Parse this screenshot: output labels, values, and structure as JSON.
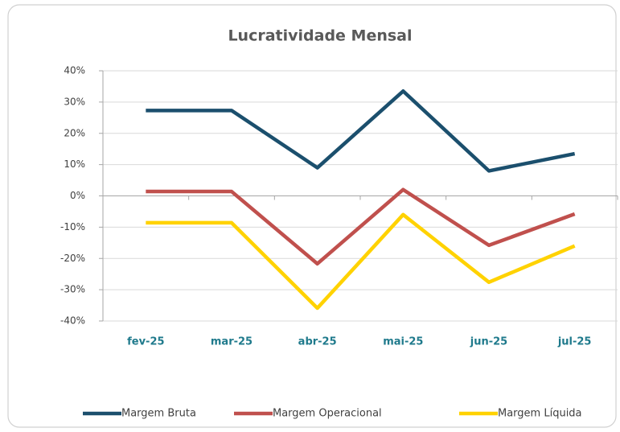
{
  "chart_data": {
    "type": "line",
    "title": "Lucratividade Mensal",
    "categories": [
      "fev-25",
      "mar-25",
      "abr-25",
      "mai-25",
      "jun-25",
      "jul-25"
    ],
    "series": [
      {
        "name": "Margem Bruta",
        "color": "#1b4f6d",
        "values": [
          27.3,
          27.3,
          9,
          33.5,
          8,
          13.5
        ]
      },
      {
        "name": "Margem Operacional",
        "color": "#c0504d",
        "values": [
          1.4,
          1.4,
          -21.7,
          2,
          -15.8,
          -5.8
        ]
      },
      {
        "name": "Margem Líquida",
        "color": "#ffd200",
        "values": [
          -8.6,
          -8.6,
          -35.9,
          -6,
          -27.6,
          -16
        ]
      }
    ],
    "ylim": [
      -40,
      40
    ],
    "yticks": [
      {
        "value": -40,
        "label": "-40%"
      },
      {
        "value": -30,
        "label": "-30%"
      },
      {
        "value": -20,
        "label": "-20%"
      },
      {
        "value": -10,
        "label": "-10%"
      },
      {
        "value": 0,
        "label": "0%"
      },
      {
        "value": 10,
        "label": "10%"
      },
      {
        "value": 20,
        "label": "20%"
      },
      {
        "value": 30,
        "label": "30%"
      },
      {
        "value": 40,
        "label": "40%"
      }
    ],
    "grid": true,
    "legend": "bottom"
  }
}
